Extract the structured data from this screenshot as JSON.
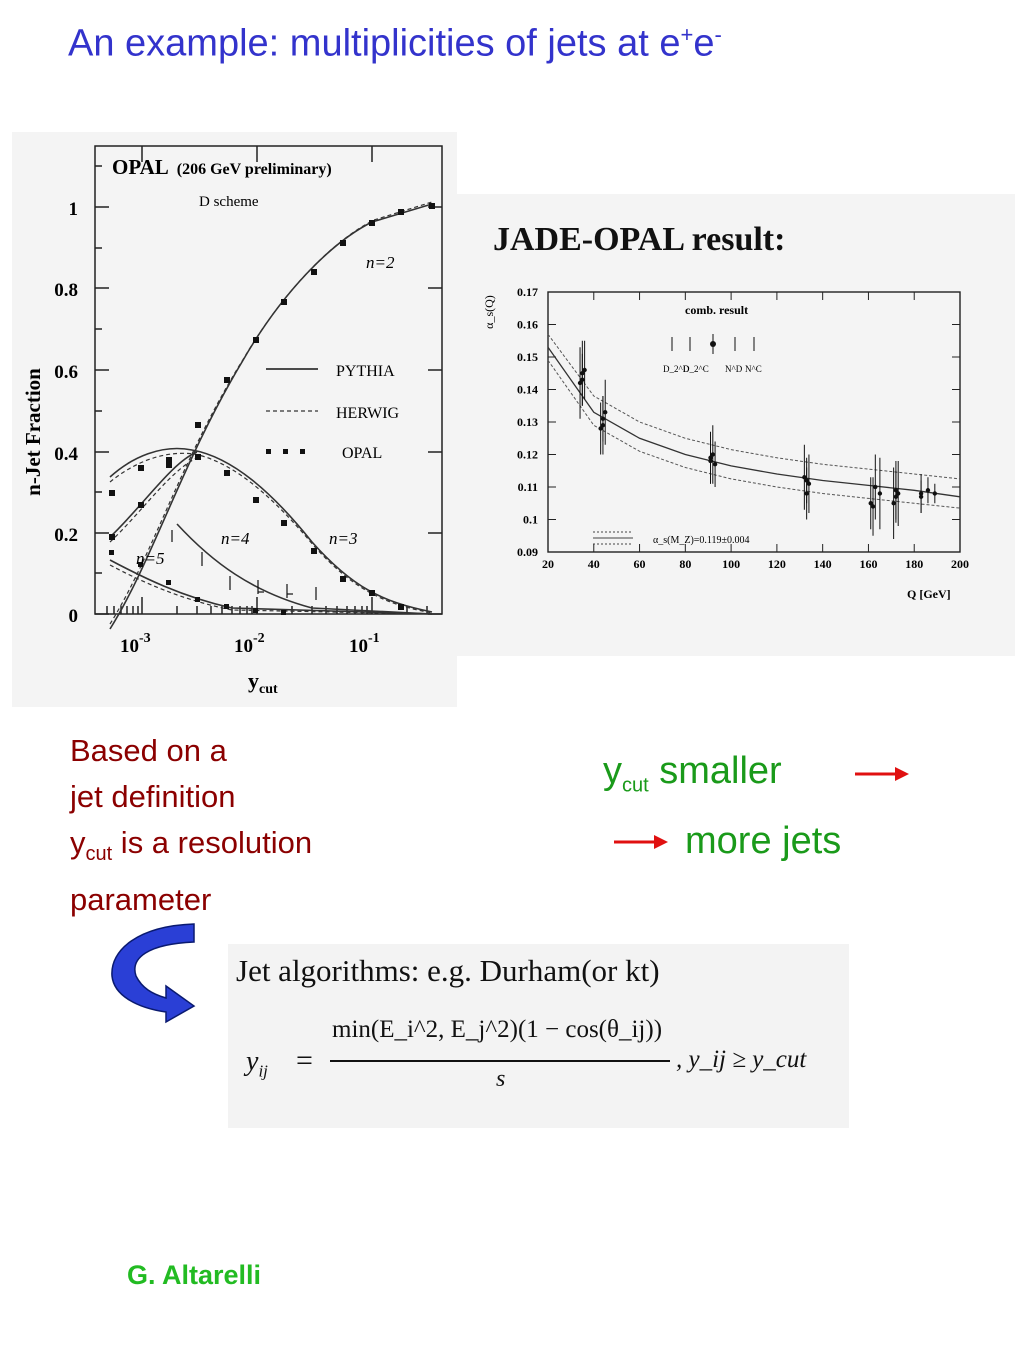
{
  "slide": {
    "title": "An example: multiplicities of jets at e",
    "title_sup_plus": "+",
    "title_e2": "e",
    "title_sup_minus": "-"
  },
  "left_plot": {
    "header": "OPAL",
    "header_sub": "(206 GeV preliminary)",
    "scheme": "D scheme",
    "ylabel": "n-Jet Fraction",
    "xlabel_main": "y",
    "xlabel_sub": "cut",
    "legend": [
      "PYTHIA",
      "HERWIG",
      "OPAL"
    ],
    "curve_labels": [
      "n=2",
      "n=3",
      "n=4",
      "n=5"
    ],
    "y_ticks": [
      "0",
      "0.2",
      "0.4",
      "0.6",
      "0.8",
      "1"
    ],
    "x_ticks": [
      {
        "base": "10",
        "exp": "-3"
      },
      {
        "base": "10",
        "exp": "-2"
      },
      {
        "base": "10",
        "exp": "-1"
      }
    ]
  },
  "chart_data": {
    "type": "scatter",
    "title": "JADE-OPAL result:",
    "xlabel": "Q [GeV]",
    "ylabel": "α_s(Q)",
    "xlim": [
      20,
      200
    ],
    "ylim": [
      0.09,
      0.17
    ],
    "x_ticks": [
      20,
      40,
      60,
      80,
      100,
      120,
      140,
      160,
      180,
      200
    ],
    "y_ticks": [
      0.09,
      0.1,
      0.11,
      0.12,
      0.13,
      0.14,
      0.15,
      0.16,
      0.17
    ],
    "legend_top": "comb. result",
    "legend_bottom": "α_s(M_Z)=0.119±0.004",
    "legend_markers": [
      "D_2^D",
      "D_2^C",
      "N^D",
      "N^C"
    ],
    "series": [
      {
        "x": [
          35,
          35,
          36,
          34,
          44,
          44,
          43,
          45,
          91,
          91,
          93,
          92,
          133,
          133,
          134,
          132,
          161,
          162,
          163,
          165,
          172,
          172,
          173,
          171,
          183,
          183,
          186,
          189
        ],
        "y": [
          0.143,
          0.145,
          0.146,
          0.142,
          0.131,
          0.129,
          0.128,
          0.133,
          0.118,
          0.119,
          0.117,
          0.12,
          0.112,
          0.108,
          0.111,
          0.113,
          0.105,
          0.104,
          0.11,
          0.108,
          0.107,
          0.109,
          0.108,
          0.105,
          0.108,
          0.107,
          0.109,
          0.108
        ],
        "err": [
          0.008,
          0.01,
          0.009,
          0.011,
          0.007,
          0.009,
          0.008,
          0.01,
          0.007,
          0.008,
          0.007,
          0.009,
          0.007,
          0.008,
          0.009,
          0.01,
          0.008,
          0.009,
          0.01,
          0.011,
          0.008,
          0.009,
          0.01,
          0.011,
          0.006,
          0.005,
          0.004,
          0.003
        ]
      }
    ],
    "bands": {
      "central": [
        [
          20,
          0.153
        ],
        [
          40,
          0.133
        ],
        [
          60,
          0.125
        ],
        [
          80,
          0.12
        ],
        [
          100,
          0.1165
        ],
        [
          120,
          0.114
        ],
        [
          140,
          0.112
        ],
        [
          160,
          0.1105
        ],
        [
          180,
          0.109
        ],
        [
          200,
          0.107
        ]
      ],
      "upper": [
        [
          20,
          0.157
        ],
        [
          40,
          0.138
        ],
        [
          60,
          0.13
        ],
        [
          80,
          0.125
        ],
        [
          100,
          0.1215
        ],
        [
          120,
          0.119
        ],
        [
          140,
          0.117
        ],
        [
          160,
          0.1155
        ],
        [
          180,
          0.114
        ],
        [
          200,
          0.1125
        ]
      ],
      "lower": [
        [
          20,
          0.149
        ],
        [
          40,
          0.129
        ],
        [
          60,
          0.121
        ],
        [
          80,
          0.116
        ],
        [
          100,
          0.1125
        ],
        [
          120,
          0.11
        ],
        [
          140,
          0.108
        ],
        [
          160,
          0.1065
        ],
        [
          180,
          0.105
        ],
        [
          200,
          0.1035
        ]
      ]
    }
  },
  "description": {
    "line1": "Based on a",
    "line2": "jet definition",
    "line3_main": "y",
    "line3_sub": "cut",
    "line3_rest": " is a resolution",
    "line4": "parameter"
  },
  "conclusion": {
    "line1_main": "y",
    "line1_sub": "cut",
    "line1_rest": " smaller",
    "line2": "more jets",
    "arrow_color": "#e01010"
  },
  "equation": {
    "heading": "Jet algorithms:  e.g. Durham(or kt)",
    "lhs": "y",
    "lhs_sub": "ij",
    "equals": "=",
    "numerator": "min(E_i^2, E_j^2)(1 − cos(θ_ij))",
    "denominator": "s",
    "condition": ", y_ij ≥ y_cut"
  },
  "author": "G. Altarelli",
  "colors": {
    "title": "#3333cc",
    "description": "#8b0000",
    "conclusion": "#1a9a1a",
    "author": "#22bb22",
    "curved_arrow": "#2a3fd6"
  }
}
